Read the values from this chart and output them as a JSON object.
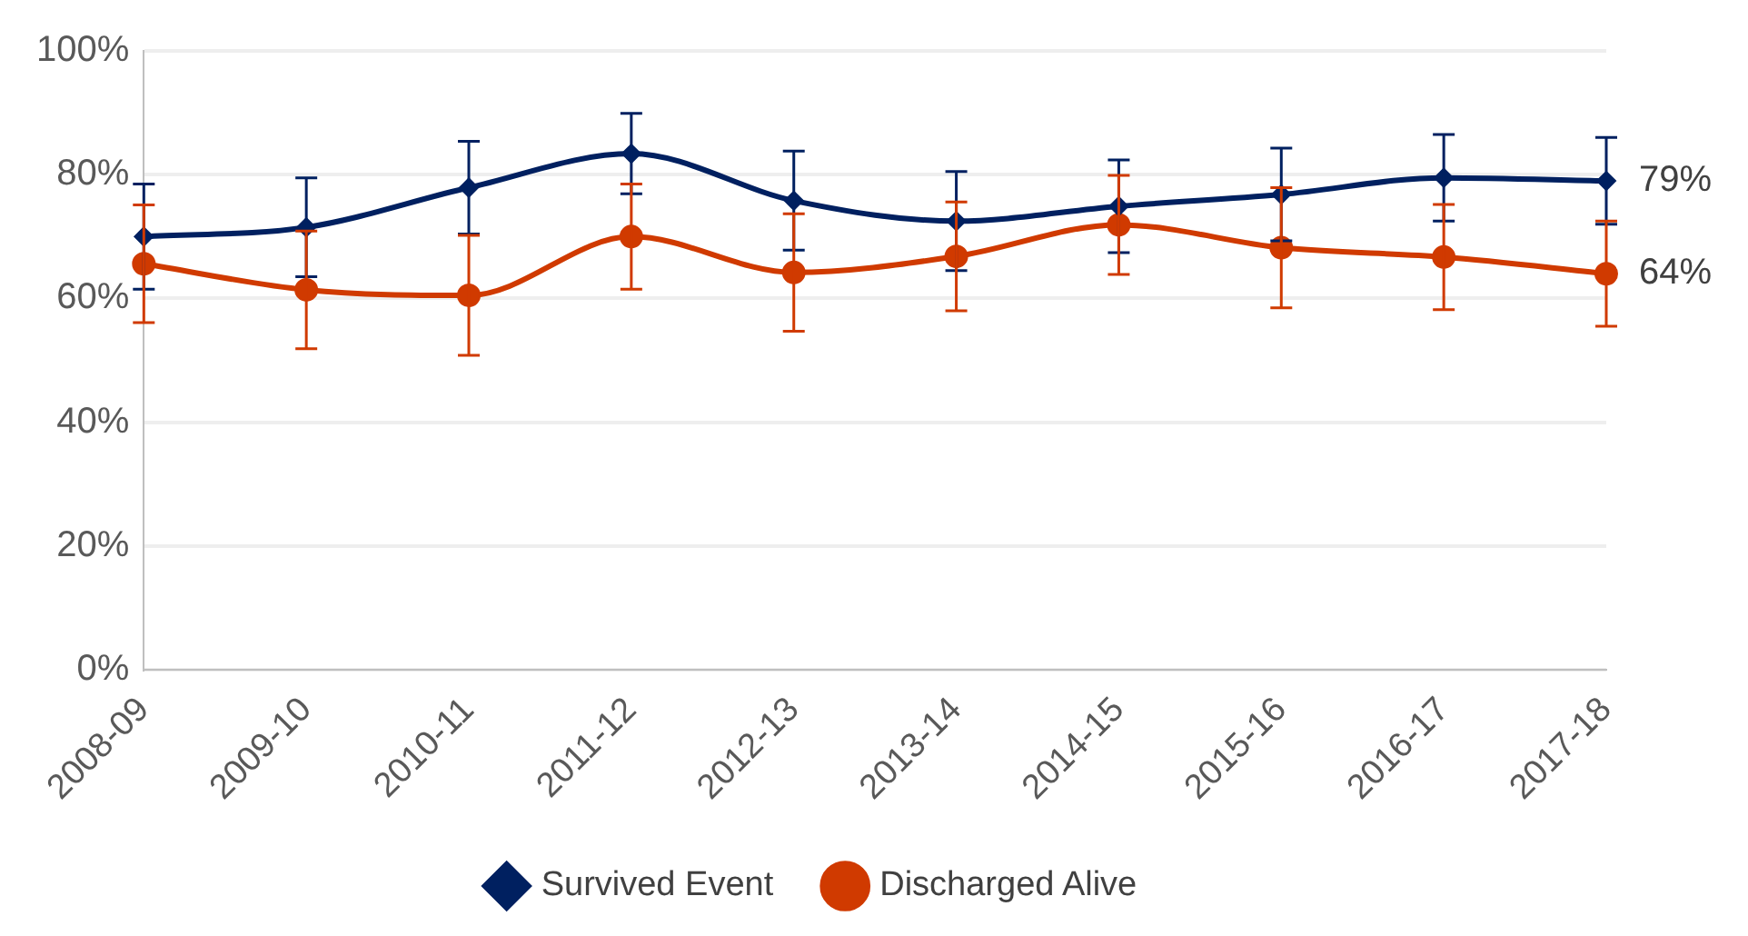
{
  "chart_data": {
    "type": "line",
    "categories": [
      "2008-09",
      "2009-10",
      "2010-11",
      "2011-12",
      "2012-13",
      "2013-14",
      "2014-15",
      "2015-16",
      "2016-17",
      "2017-18"
    ],
    "series": [
      {
        "name": "Survived Event",
        "color": "#002060",
        "marker": "diamond",
        "values": [
          70,
          71.5,
          77.9,
          83.4,
          75.8,
          72.5,
          74.9,
          76.8,
          79.5,
          79
        ],
        "errors": [
          8.5,
          8,
          7.5,
          6.5,
          8,
          8,
          7.5,
          7.5,
          7,
          7
        ]
      },
      {
        "name": "Discharged Alive",
        "color": "#d03a00",
        "marker": "circle",
        "values": [
          65.6,
          61.4,
          60.5,
          70,
          64.2,
          66.8,
          71.9,
          68.2,
          66.7,
          64
        ],
        "errors": [
          9.5,
          9.5,
          9.7,
          8.5,
          9.5,
          8.8,
          8,
          9.7,
          8.5,
          8.5
        ]
      }
    ],
    "ylim": [
      0,
      100
    ],
    "yticks": [
      {
        "value": 0,
        "label": "0%"
      },
      {
        "value": 20,
        "label": "20%"
      },
      {
        "value": 40,
        "label": "40%"
      },
      {
        "value": 60,
        "label": "60%"
      },
      {
        "value": 80,
        "label": "80%"
      },
      {
        "value": 100,
        "label": "100%"
      }
    ],
    "grid": "y",
    "legend": "bottom",
    "line_style": "solid",
    "annotations": [
      {
        "text": "79%",
        "x": "2017-18",
        "y": 79
      },
      {
        "text": "64%",
        "x": "2017-18",
        "y": 64
      }
    ]
  }
}
